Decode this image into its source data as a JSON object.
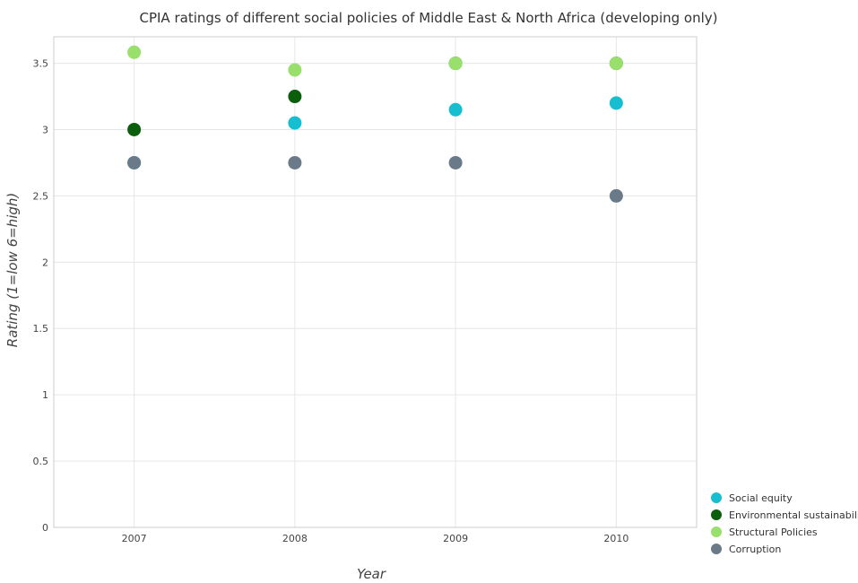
{
  "chart_data": {
    "type": "scatter",
    "title": "CPIA ratings of different social policies of Middle East & North Africa (developing only)",
    "xlabel": "Year",
    "ylabel": "Rating (1=low 6=high)",
    "categories": [
      "2007",
      "2008",
      "2009",
      "2010"
    ],
    "ylim": [
      0,
      3.7
    ],
    "yticks": [
      0,
      0.5,
      1,
      1.5,
      2,
      2.5,
      3,
      3.5
    ],
    "ytick_labels": [
      "0",
      "0.5",
      "1",
      "1.5",
      "2",
      "2.5",
      "3",
      "3.5"
    ],
    "grid": true,
    "legend_position": "bottom-right",
    "series": [
      {
        "name": "Social equity",
        "color": "#17becf",
        "values": [
          2.75,
          3.05,
          3.15,
          3.2
        ]
      },
      {
        "name": "Environmental sustainability",
        "color": "#0b5e0b",
        "values": [
          3.0,
          3.25,
          3.5,
          3.5
        ]
      },
      {
        "name": "Structural Policies",
        "color": "#98e06b",
        "values": [
          3.583,
          3.45,
          3.5,
          3.5
        ]
      },
      {
        "name": "Corruption",
        "color": "#6b7a88",
        "values": [
          2.75,
          2.75,
          2.75,
          2.5
        ]
      }
    ]
  }
}
